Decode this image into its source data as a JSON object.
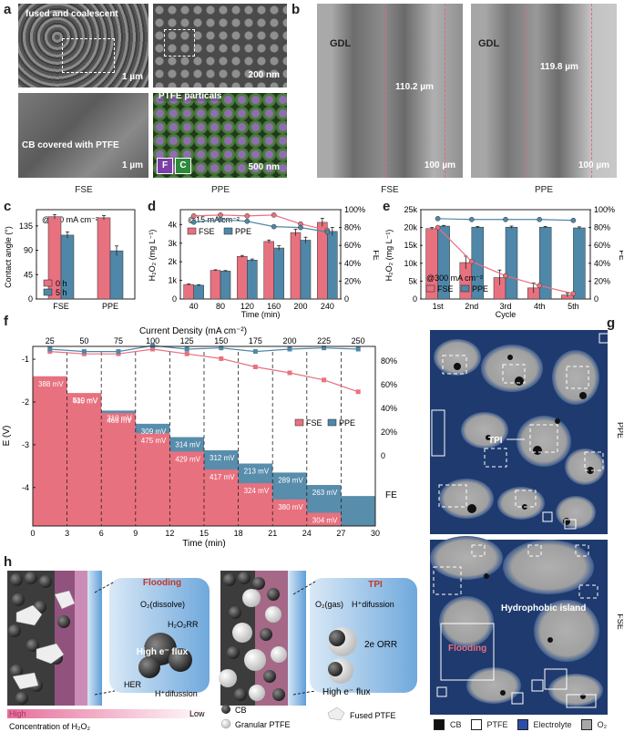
{
  "panel_labels": [
    "a",
    "b",
    "c",
    "d",
    "e",
    "f",
    "g",
    "h"
  ],
  "a": {
    "img1_label": "fused and coalescent",
    "img1_scale": "1 µm",
    "img2_scale": "200 nm",
    "img3_label": "CB covered with PTFE",
    "img3_scale": "1 µm",
    "img4_label": "PTFE particals",
    "img4_scale": "500 nm",
    "badge_f": "F",
    "badge_c": "C",
    "cap_left": "FSE",
    "cap_right": "PPE"
  },
  "b": {
    "gdl": "GDL",
    "thick_fse": "110.2 µm",
    "thick_ppe": "119.8 µm",
    "scale": "100 µm",
    "cap_left": "FSE",
    "cap_right": "PPE"
  },
  "c": {
    "annotation": "@300 mA cm⁻²",
    "ylabel": "Contact angle (°)",
    "yticks": [
      "0",
      "45",
      "90",
      "135"
    ],
    "legend": [
      "0 h",
      "5 h"
    ]
  },
  "d": {
    "annotation": "@15 mA cm⁻²",
    "ylabel": "H₂O₂ (mg L⁻¹)",
    "y2label": "FE",
    "xlabel": "Time (min)",
    "yticks": [
      "0",
      "1k",
      "2k",
      "3k",
      "4k"
    ],
    "y2ticks": [
      "0",
      "20%",
      "40%",
      "60%",
      "80%",
      "100%"
    ],
    "legend": [
      "FSE",
      "PPE"
    ]
  },
  "e": {
    "annotation": "@300 mA cm⁻²",
    "ylabel": "H₂O₂ (mg L⁻¹)",
    "y2label": "FE",
    "xlabel": "Cycle",
    "yticks": [
      "0",
      "5k",
      "10k",
      "15k",
      "20k",
      "25k"
    ],
    "y2ticks": [
      "0",
      "20%",
      "40%",
      "60%",
      "80%",
      "100%"
    ],
    "legend": [
      "FSE",
      "PPE"
    ]
  },
  "f": {
    "top_title": "Current Density (mA cm⁻²)",
    "top_ticks": [
      "25",
      "50",
      "75",
      "100",
      "125",
      "150",
      "175",
      "200",
      "225",
      "250"
    ],
    "ylabel": "E (V)",
    "y2label": "FE",
    "xlabel": "Time (min)",
    "yticks": [
      "-1",
      "-2",
      "-3",
      "-4"
    ],
    "y2ticks": [
      "0",
      "20%",
      "40%",
      "60%",
      "80%"
    ],
    "xticks": [
      "0",
      "3",
      "6",
      "9",
      "12",
      "15",
      "18",
      "21",
      "24",
      "27",
      "30"
    ],
    "legend": [
      "FSE",
      "PPE"
    ],
    "fse_mv": [
      "388 mV",
      "510 mV",
      "466 mV",
      "475 mV",
      "429 mV",
      "417 mV",
      "324 mV",
      "380 mV",
      "304 mV",
      "317 mV"
    ],
    "ppe_mv": [
      "405 mV",
      "310 mV",
      "309 mV",
      "314 mV",
      "312 mV",
      "213 mV",
      "289 mV",
      "263 mV"
    ]
  },
  "g": {
    "tpi": "TPI",
    "ppe": "PPE",
    "hydrophobic": "Hydrophobic island",
    "flooding": "Flooding",
    "fse": "FSE",
    "legend": [
      "CB",
      "PTFE",
      "Electrolyte",
      "O₂"
    ],
    "colors": {
      "cb": "#111111",
      "ptfe": "#ffffff",
      "electrolyte": "#2b4ea8",
      "o2": "#a8a8a8",
      "bg": "#1f3a6e"
    }
  },
  "h": {
    "flooding": "Flooding",
    "tpi": "TPI",
    "o2_dissolve": "O₂(dissolve)",
    "h2o2rr": "H₂O₂RR",
    "high_flux": "High e⁻ flux",
    "her": "HER",
    "h_diffusion": "H⁺difussion",
    "o2_gas": "O₂(gas)",
    "h_diffusion2": "H⁺difussion",
    "orr": "2e ORR",
    "high_flux2": "High e⁻ flux",
    "grad_high": "High",
    "grad_low": "Low",
    "grad_caption": "Concentration of H₂O₂",
    "legend_cb": "CB",
    "legend_ptfe": "Granular PTFE",
    "legend_fused": "Fused PTFE"
  },
  "chart_data": [
    {
      "type": "bar",
      "panel": "c",
      "title": "",
      "ylabel": "Contact angle (°)",
      "categories": [
        "FSE",
        "PPE"
      ],
      "ylim": [
        0,
        165
      ],
      "series": [
        {
          "name": "0 h",
          "values": [
            152,
            150
          ],
          "errors": [
            4,
            4
          ],
          "color": "#e8717f"
        },
        {
          "name": "5 h",
          "values": [
            118,
            89
          ],
          "errors": [
            6,
            9
          ],
          "color": "#4f87a8"
        }
      ]
    },
    {
      "type": "bar",
      "panel": "d",
      "xlabel": "Time (min)",
      "ylabel": "H₂O₂ (mg L⁻¹)",
      "y2label": "FE",
      "categories": [
        "40",
        "80",
        "120",
        "160",
        "200",
        "240"
      ],
      "ylim": [
        0,
        4800
      ],
      "y2lim": [
        0,
        100
      ],
      "series": [
        {
          "name": "FSE",
          "values": [
            780,
            1540,
            2290,
            3090,
            3570,
            4120
          ],
          "errors": [
            30,
            30,
            50,
            80,
            180,
            220
          ],
          "color": "#e8717f"
        },
        {
          "name": "PPE",
          "values": [
            740,
            1500,
            2090,
            2740,
            3160,
            3630
          ],
          "errors": [
            30,
            30,
            60,
            120,
            160,
            220
          ],
          "color": "#4f87a8"
        }
      ],
      "fe_series": [
        {
          "name": "FSE",
          "values": [
            93,
            94,
            93,
            94,
            84,
            77
          ],
          "color": "#e8717f"
        },
        {
          "name": "PPE",
          "values": [
            86,
            89,
            87,
            81,
            80,
            75
          ],
          "color": "#4f87a8"
        }
      ]
    },
    {
      "type": "bar",
      "panel": "e",
      "xlabel": "Cycle",
      "ylabel": "H₂O₂ (mg L⁻¹)",
      "y2label": "FE",
      "categories": [
        "1st",
        "2nd",
        "3rd",
        "4th",
        "5th"
      ],
      "ylim": [
        0,
        25000
      ],
      "y2lim": [
        0,
        100
      ],
      "series": [
        {
          "name": "FSE",
          "values": [
            19700,
            10200,
            6000,
            3100,
            1100
          ],
          "errors": [
            300,
            1800,
            2100,
            1400,
            500
          ],
          "color": "#e8717f"
        },
        {
          "name": "PPE",
          "values": [
            20400,
            20100,
            20100,
            20100,
            19900
          ],
          "errors": [
            200,
            200,
            300,
            200,
            300
          ],
          "color": "#4f87a8"
        }
      ],
      "fe_series": [
        {
          "name": "FSE",
          "values": [
            80,
            42,
            26,
            15,
            6
          ],
          "color": "#e8717f"
        },
        {
          "name": "PPE",
          "values": [
            90,
            89,
            89,
            89,
            88
          ],
          "color": "#4f87a8"
        }
      ]
    },
    {
      "type": "line",
      "panel": "f",
      "xlabel": "Time (min)",
      "ylabel": "E (V)",
      "y2label": "FE",
      "xlim": [
        0,
        30
      ],
      "ylim": [
        -4.9,
        -0.7
      ],
      "current_density": [
        25,
        50,
        75,
        100,
        125,
        150,
        175,
        200,
        225,
        250
      ],
      "series": [
        {
          "name": "FSE",
          "step_potential": [
            -1.4,
            -1.79,
            -2.26,
            -2.73,
            -3.16,
            -3.58,
            -3.9,
            -4.28,
            -4.59,
            -4.91
          ],
          "fe": [
            88,
            86,
            86,
            90,
            86,
            82,
            75,
            70,
            64,
            54
          ],
          "color": "#e8717f"
        },
        {
          "name": "PPE",
          "step_potential": [
            -1.4,
            -1.8,
            -2.2,
            -2.51,
            -2.82,
            -3.13,
            -3.44,
            -3.65,
            -3.94,
            -4.2
          ],
          "fe": [
            90,
            88,
            88,
            93,
            90,
            91,
            88,
            90,
            91,
            90
          ],
          "color": "#4f87a8"
        }
      ]
    }
  ]
}
